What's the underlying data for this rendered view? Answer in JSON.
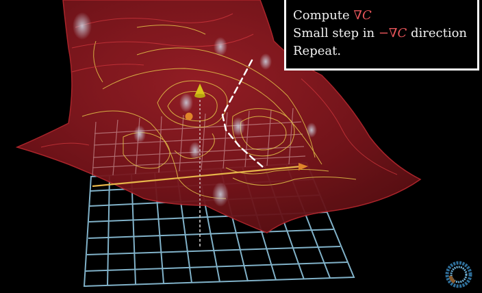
{
  "algorithm": {
    "line1_prefix": "Compute ",
    "line1_math": "∇C",
    "line2_prefix": "Small step in ",
    "line2_math": "−∇C",
    "line2_suffix": " direction",
    "line3": "Repeat."
  },
  "colors": {
    "surface": "#8c1c22",
    "surface_edge": "#b3262d",
    "contour": "#e6c84a",
    "grid_floor": "#8fc6df",
    "gradient_accent": "#e8555a",
    "x_axis": "#e7b64a",
    "y_axis_cone": "#d8c21a",
    "x_axis_cone": "#e0852a",
    "path": "#ffffff",
    "box_border": "#ffffff"
  },
  "icons": {
    "logo": "pi-creature-logo-icon",
    "cone_up": "axis-arrow-up-icon",
    "cone_right": "axis-arrow-right-icon"
  }
}
